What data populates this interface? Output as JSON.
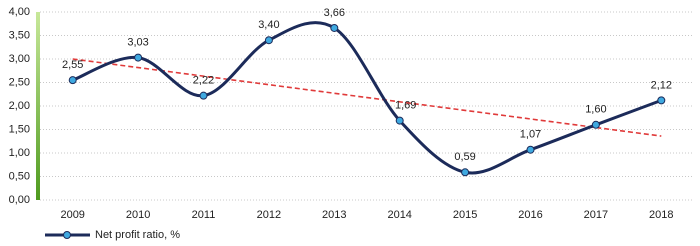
{
  "chart_data": {
    "type": "line",
    "categories": [
      "2009",
      "2010",
      "2011",
      "2012",
      "2013",
      "2014",
      "2015",
      "2016",
      "2017",
      "2018"
    ],
    "series": [
      {
        "name": "Net profit ratio, %",
        "color": "#1c2b5a",
        "marker_color": "#3fa9e0",
        "values": [
          2.55,
          3.03,
          2.22,
          3.4,
          3.66,
          1.69,
          0.59,
          1.07,
          1.6,
          2.12
        ],
        "value_labels": [
          "2,55",
          "3,03",
          "2,22",
          "3,40",
          "3,66",
          "1,69",
          "0,59",
          "1,07",
          "1,60",
          "2,12"
        ]
      }
    ],
    "trend": {
      "start": 3.0,
      "end": 1.36,
      "color": "#e03a3a"
    },
    "ylim": [
      0,
      4
    ],
    "yticks": [
      {
        "value": 0,
        "label": "0,00"
      },
      {
        "value": 0.5,
        "label": "0,50"
      },
      {
        "value": 1,
        "label": "1,00"
      },
      {
        "value": 1.5,
        "label": "1,50"
      },
      {
        "value": 2,
        "label": "2,00"
      },
      {
        "value": 2.5,
        "label": "2,50"
      },
      {
        "value": 3,
        "label": "3,00"
      },
      {
        "value": 3.5,
        "label": "3,50"
      },
      {
        "value": 4,
        "label": "4,00"
      }
    ],
    "grid": true,
    "smooth": true,
    "legend": "bottom-left"
  }
}
